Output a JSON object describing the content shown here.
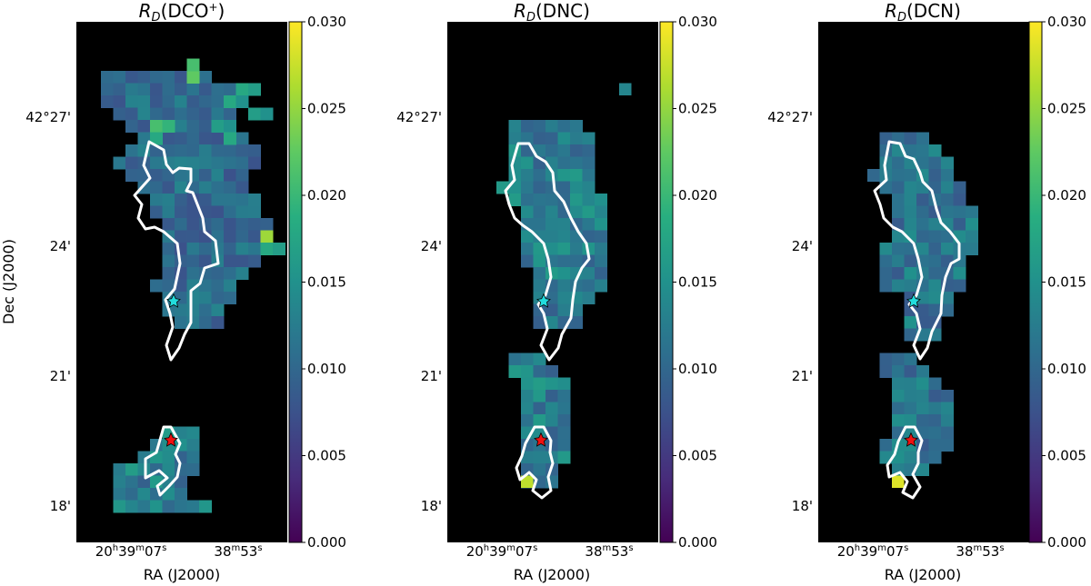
{
  "figure": {
    "ylabel": "Dec (J2000)",
    "xlabel": "RA (J2000)",
    "yticks": [
      "42°27'",
      "24'",
      "21'",
      "18'"
    ],
    "xticks_main": [
      "20",
      "39",
      "07"
    ],
    "xticks_second": [
      "38",
      "53"
    ],
    "xtick_units": [
      "h",
      "m",
      "s"
    ],
    "colorbar": {
      "min": 0.0,
      "max": 0.03,
      "ticks": [
        "0.000",
        "0.005",
        "0.010",
        "0.015",
        "0.020",
        "0.025",
        "0.030"
      ],
      "colormap": "viridis"
    },
    "background_color": "#000000",
    "contour_color": "#ffffff",
    "markers": [
      {
        "name": "cyan-star",
        "color": "#22dddd"
      },
      {
        "name": "red-star",
        "color": "#ee1111"
      }
    ]
  },
  "chart_data": [
    {
      "type": "heatmap",
      "title_base": "R",
      "title_sub": "D",
      "title_species": "(DCO",
      "title_sup": "+",
      "title_end": ")",
      "values_note": ""
    },
    {
      "type": "heatmap",
      "title_base": "R",
      "title_sub": "D",
      "title_species": "(DNC)",
      "title_sup": "",
      "title_end": ""
    },
    {
      "type": "heatmap",
      "title_base": "R",
      "title_sub": "D",
      "title_species": "(DCN)",
      "title_sup": "",
      "title_end": ""
    }
  ]
}
